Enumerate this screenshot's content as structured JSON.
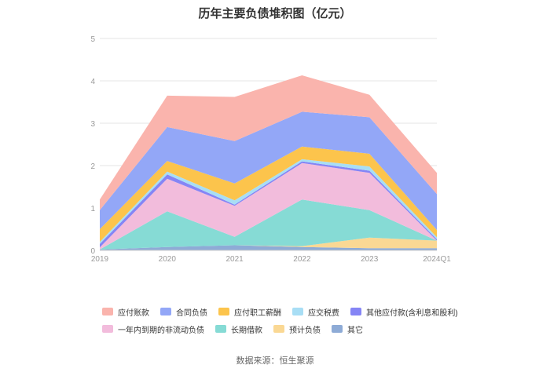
{
  "chart_data": {
    "type": "area",
    "stacked": true,
    "title": "历年主要负债堆积图（亿元）",
    "categories": [
      "2019",
      "2020",
      "2021",
      "2022",
      "2023",
      "2024Q1"
    ],
    "y_ticks": [
      "0",
      "1",
      "2",
      "3",
      "4",
      "5"
    ],
    "ylim": [
      0,
      5
    ],
    "grid": true,
    "legend_position": "bottom",
    "series": [
      {
        "name": "其它",
        "color": "#8eabd6",
        "values": [
          0.02,
          0.08,
          0.12,
          0.08,
          0.05,
          0.05
        ]
      },
      {
        "name": "预计负债",
        "color": "#fad894",
        "values": [
          0.0,
          0.0,
          0.0,
          0.02,
          0.25,
          0.18
        ]
      },
      {
        "name": "长期借款",
        "color": "#86dbd5",
        "values": [
          0.0,
          0.84,
          0.2,
          1.1,
          0.65,
          0.0
        ]
      },
      {
        "name": "一年内到期的非流动负债",
        "color": "#f2bcdc",
        "values": [
          0.05,
          0.77,
          0.73,
          0.86,
          0.88,
          0.0
        ]
      },
      {
        "name": "其他应付款(含利息和股利)",
        "color": "#8585f5",
        "values": [
          0.08,
          0.1,
          0.03,
          0.04,
          0.05,
          0.03
        ]
      },
      {
        "name": "应交税费",
        "color": "#a8def5",
        "values": [
          0.05,
          0.07,
          0.1,
          0.05,
          0.1,
          0.05
        ]
      },
      {
        "name": "应付职工薪酬",
        "color": "#fcc44c",
        "values": [
          0.3,
          0.25,
          0.4,
          0.3,
          0.3,
          0.17
        ]
      },
      {
        "name": "合同负债",
        "color": "#93a7f7",
        "values": [
          0.45,
          0.8,
          1.0,
          0.82,
          0.86,
          0.85
        ]
      },
      {
        "name": "应付账款",
        "color": "#fab4ad",
        "values": [
          0.25,
          0.74,
          1.04,
          0.86,
          0.53,
          0.5
        ]
      }
    ],
    "legend_order": [
      "应付账款",
      "合同负债",
      "应付职工薪酬",
      "应交税费",
      "其他应付款(含利息和股利)",
      "一年内到期的非流动负债",
      "长期借款",
      "预计负债",
      "其它"
    ]
  },
  "source": "数据来源：恒生聚源"
}
